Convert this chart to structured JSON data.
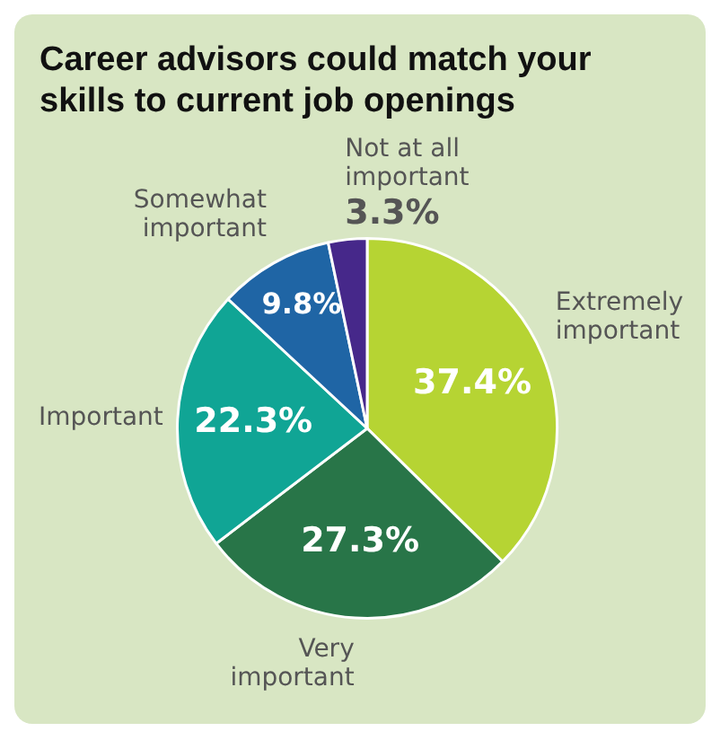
{
  "chart_data": {
    "type": "pie",
    "title": "Career advisors could match your skills to current job openings",
    "categories": [
      "Extremely important",
      "Very important",
      "Important",
      "Somewhat important",
      "Not at all important"
    ],
    "values": [
      37.4,
      27.3,
      22.3,
      9.8,
      3.3
    ],
    "value_labels": [
      "37.4%",
      "27.3%",
      "22.3%",
      "9.8%",
      "3.3%"
    ],
    "colors": [
      "#b6d433",
      "#287548",
      "#10a595",
      "#1f65a5",
      "#46288a"
    ],
    "legend": false
  }
}
